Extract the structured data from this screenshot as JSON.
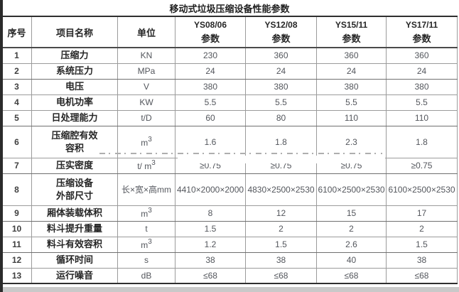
{
  "title": "移动式垃圾压缩设备性能参数",
  "table": {
    "header": {
      "no": "序号",
      "item": "项目名称",
      "unit": "单位",
      "param_label": "参数",
      "models": [
        "YS08/06",
        "YS12/08",
        "YS15/11",
        "YS17/11"
      ]
    },
    "rows": [
      {
        "no": "1",
        "name": "压缩力",
        "unit": "KN",
        "values": [
          "230",
          "360",
          "360",
          "360"
        ]
      },
      {
        "no": "2",
        "name": "系统压力",
        "unit": "MPa",
        "values": [
          "24",
          "24",
          "24",
          "24"
        ],
        "heavy": true
      },
      {
        "no": "3",
        "name": "电压",
        "unit": "V",
        "values": [
          "380",
          "380",
          "380",
          "380"
        ]
      },
      {
        "no": "4",
        "name": "电机功率",
        "unit": "KW",
        "values": [
          "5.5",
          "5.5",
          "5.5",
          "5.5"
        ]
      },
      {
        "no": "5",
        "name": "日处理能力",
        "unit": "t/D",
        "values": [
          "60",
          "80",
          "110",
          "110"
        ],
        "heavy": true
      },
      {
        "no": "6",
        "name": "压缩腔有效",
        "name2": "容积",
        "unit": "m",
        "unit_sup": "3",
        "values": [
          "1.6",
          "1.8",
          "2.3",
          "1.8"
        ],
        "tall": true
      },
      {
        "no": "7",
        "name": "压实密度",
        "unit": "t/ m",
        "unit_sup": "3",
        "values": [
          "≥0.75",
          "≥0.75",
          "≥0.75",
          "≥0.75"
        ],
        "heavy": true
      },
      {
        "no": "8",
        "name": "压缩设备",
        "name2": "外部尺寸",
        "unit": "长×宽×高mm",
        "values": [
          "4410×2000×2000",
          "4830×2500×2530",
          "6100×2500×2530",
          "6100×2500×2530"
        ],
        "tall": true
      },
      {
        "no": "9",
        "name": "厢体装载体积",
        "unit": "m",
        "unit_sup": "3",
        "values": [
          "8",
          "12",
          "15",
          "17"
        ],
        "heavy": true
      },
      {
        "no": "10",
        "name": "料斗提升重量",
        "unit": "t",
        "values": [
          "1.5",
          "2",
          "2",
          "2"
        ]
      },
      {
        "no": "11",
        "name": "料斗有效容积",
        "unit": "m",
        "unit_sup": "3",
        "values": [
          "1.2",
          "1.5",
          "2.6",
          "1.5"
        ],
        "heavy": true
      },
      {
        "no": "12",
        "name": "循环时间",
        "unit": "s",
        "values": [
          "38",
          "38",
          "40",
          "38"
        ]
      },
      {
        "no": "13",
        "name": "运行噪音",
        "unit": "dB",
        "values": [
          "≤68",
          "≤68",
          "≤68",
          "≤68"
        ]
      }
    ]
  },
  "colors": {
    "grid_line": "#9b9b9b",
    "outer_border": "#2f2f2f",
    "heading_text": "#262626",
    "value_text": "#53565c",
    "watermark_dash": "#aeaeae"
  }
}
